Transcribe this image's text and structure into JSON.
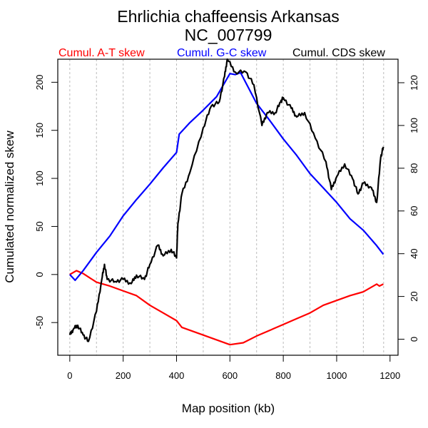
{
  "chart_data": {
    "type": "line",
    "title": "Ehrlichia chaffeensis Arkansas",
    "subtitle": "NC_007799",
    "xlabel": "Map position (kb)",
    "ylabel": "Cumulated normalized skew",
    "xlim": [
      -45,
      1230
    ],
    "ylim": [
      -84,
      224
    ],
    "y2lim": [
      -7.5,
      131
    ],
    "xticks": [
      "0",
      "200",
      "400",
      "600",
      "800",
      "1000",
      "1200"
    ],
    "xtick_values": [
      0,
      200,
      400,
      600,
      800,
      1000,
      1200
    ],
    "yticks": [
      "-50",
      "0",
      "50",
      "100",
      "150",
      "200"
    ],
    "ytick_values": [
      -50,
      0,
      50,
      100,
      150,
      200
    ],
    "y2ticks": [
      "0",
      "20",
      "40",
      "60",
      "80",
      "100",
      "120"
    ],
    "y2tick_values": [
      0,
      20,
      40,
      60,
      80,
      100,
      120
    ],
    "grid_x": [
      0,
      100,
      200,
      300,
      400,
      500,
      600,
      700,
      800,
      900,
      1000,
      1100,
      1176
    ],
    "legend_placement": "top",
    "series": [
      {
        "name": "Cumul. A-T skew",
        "color": "#ff0000",
        "axis": "left",
        "x": [
          0,
          25,
          50,
          100,
          150,
          200,
          250,
          300,
          350,
          400,
          420,
          500,
          550,
          600,
          650,
          700,
          750,
          800,
          850,
          900,
          950,
          1000,
          1050,
          1100,
          1150,
          1160,
          1175
        ],
        "y": [
          0,
          4,
          1,
          -8,
          -12,
          -17,
          -22,
          -32,
          -40,
          -48,
          -55,
          -63,
          -68,
          -73,
          -71,
          -64,
          -58,
          -52,
          -46,
          -40,
          -32,
          -27,
          -22,
          -18,
          -10,
          -12,
          -10
        ]
      },
      {
        "name": "Cumul. G-C skew",
        "color": "#0000ff",
        "axis": "left",
        "x": [
          0,
          20,
          50,
          100,
          150,
          200,
          250,
          300,
          350,
          400,
          410,
          450,
          500,
          550,
          600,
          620,
          640,
          700,
          750,
          800,
          850,
          900,
          950,
          1000,
          1050,
          1100,
          1150,
          1175
        ],
        "y": [
          0,
          -6,
          4,
          23,
          40,
          61,
          78,
          94,
          111,
          127,
          146,
          158,
          171,
          185,
          209,
          208,
          210,
          178,
          160,
          141,
          124,
          105,
          90,
          75,
          58,
          46,
          30,
          21
        ]
      },
      {
        "name": "Cumul. CDS skew",
        "color": "#000000",
        "axis": "right",
        "x": [
          0,
          15,
          30,
          50,
          70,
          100,
          120,
          130,
          140,
          170,
          200,
          230,
          250,
          280,
          300,
          330,
          350,
          380,
          400,
          405,
          420,
          450,
          500,
          530,
          560,
          580,
          590,
          620,
          660,
          690,
          720,
          740,
          770,
          790,
          800,
          830,
          850,
          880,
          920,
          960,
          980,
          1000,
          1030,
          1060,
          1080,
          1100,
          1130,
          1150,
          1165,
          1175
        ],
        "y": [
          2,
          5,
          6.5,
          2,
          -1,
          13,
          28,
          35,
          28,
          27,
          28,
          26,
          30,
          28,
          35,
          44,
          39,
          42,
          38,
          54,
          68,
          78,
          99,
          109,
          111,
          123,
          131,
          125,
          125,
          119,
          100,
          106,
          106,
          111,
          113,
          108,
          104,
          106,
          94,
          83,
          70,
          76,
          82,
          75,
          68,
          73,
          71,
          64,
          85,
          90
        ]
      }
    ]
  }
}
